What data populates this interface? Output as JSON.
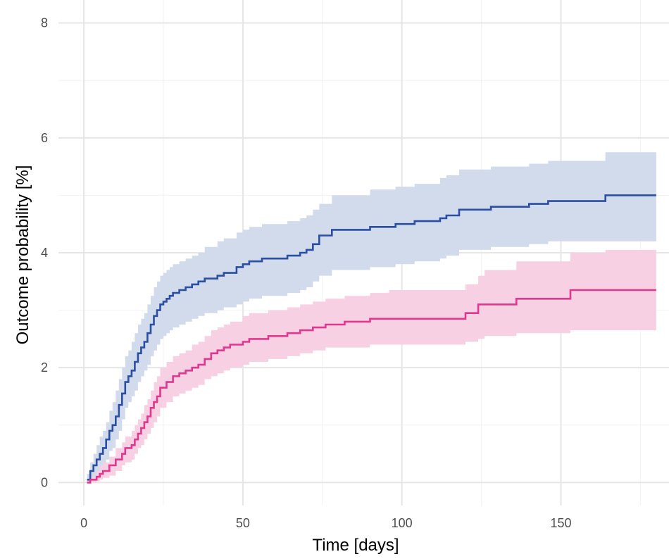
{
  "chart_data": {
    "type": "line",
    "title": "",
    "xlabel": "Time [days]",
    "ylabel": "Outcome probability [%]",
    "xlim": [
      -8,
      184
    ],
    "ylim": [
      -0.4,
      8.4
    ],
    "x_ticks": [
      0,
      50,
      100,
      150
    ],
    "x_tick_labels": [
      "0",
      "50",
      "100",
      "150"
    ],
    "y_ticks": [
      0,
      2,
      4,
      6,
      8
    ],
    "y_tick_labels": [
      "0",
      "2",
      "4",
      "6",
      "8"
    ],
    "grid": true,
    "step": true,
    "legend": "none",
    "series": [
      {
        "color": "#2a4ea3",
        "band_color": "#d2dbec",
        "x": [
          1,
          2,
          3,
          4,
          5,
          6,
          7,
          8,
          9,
          10,
          11,
          12,
          13,
          14,
          15,
          16,
          17,
          18,
          19,
          20,
          21,
          22,
          23,
          24,
          25,
          26,
          27,
          28,
          30,
          32,
          34,
          36,
          38,
          42,
          44,
          48,
          50,
          52,
          56,
          64,
          68,
          70,
          72,
          74,
          78,
          90,
          98,
          104,
          112,
          114,
          118,
          128,
          140,
          146,
          164,
          180
        ],
        "y": [
          0.05,
          0.2,
          0.3,
          0.4,
          0.5,
          0.6,
          0.75,
          0.9,
          1.0,
          1.15,
          1.35,
          1.55,
          1.75,
          1.85,
          1.95,
          2.1,
          2.25,
          2.35,
          2.45,
          2.6,
          2.75,
          2.9,
          3.0,
          3.1,
          3.15,
          3.2,
          3.25,
          3.3,
          3.35,
          3.4,
          3.45,
          3.5,
          3.55,
          3.6,
          3.65,
          3.75,
          3.8,
          3.85,
          3.9,
          3.95,
          4.0,
          4.05,
          4.15,
          4.3,
          4.4,
          4.45,
          4.5,
          4.55,
          4.6,
          4.65,
          4.75,
          4.8,
          4.85,
          4.9,
          5.0,
          5.0
        ],
        "lower": [
          0.0,
          0.05,
          0.1,
          0.15,
          0.2,
          0.3,
          0.4,
          0.55,
          0.6,
          0.75,
          0.9,
          1.1,
          1.3,
          1.4,
          1.5,
          1.6,
          1.75,
          1.85,
          1.95,
          2.05,
          2.2,
          2.3,
          2.4,
          2.5,
          2.55,
          2.6,
          2.65,
          2.7,
          2.75,
          2.8,
          2.85,
          2.9,
          2.95,
          3.0,
          3.05,
          3.1,
          3.15,
          3.2,
          3.25,
          3.3,
          3.35,
          3.4,
          3.5,
          3.6,
          3.7,
          3.75,
          3.8,
          3.85,
          3.9,
          3.95,
          4.05,
          4.1,
          4.15,
          4.2,
          4.2,
          4.2
        ],
        "upper": [
          0.15,
          0.35,
          0.5,
          0.65,
          0.8,
          0.9,
          1.05,
          1.25,
          1.4,
          1.6,
          1.8,
          2.0,
          2.2,
          2.3,
          2.45,
          2.6,
          2.75,
          2.85,
          2.95,
          3.1,
          3.25,
          3.4,
          3.5,
          3.6,
          3.65,
          3.7,
          3.75,
          3.8,
          3.85,
          3.9,
          3.95,
          4.0,
          4.1,
          4.2,
          4.25,
          4.35,
          4.4,
          4.45,
          4.5,
          4.55,
          4.6,
          4.65,
          4.75,
          4.85,
          5.0,
          5.1,
          5.15,
          5.2,
          5.3,
          5.35,
          5.45,
          5.5,
          5.55,
          5.6,
          5.75,
          5.75
        ]
      },
      {
        "color": "#e0388f",
        "band_color": "#f7d1e3",
        "x": [
          1,
          2,
          4,
          5,
          6,
          8,
          10,
          12,
          13,
          15,
          16,
          17,
          18,
          19,
          20,
          21,
          22,
          23,
          24,
          26,
          28,
          30,
          32,
          34,
          36,
          38,
          40,
          42,
          44,
          46,
          50,
          52,
          58,
          64,
          68,
          72,
          76,
          82,
          90,
          94,
          96,
          100,
          112,
          120,
          124,
          126,
          136,
          153,
          164,
          180
        ],
        "y": [
          0.0,
          0.05,
          0.1,
          0.15,
          0.2,
          0.3,
          0.4,
          0.5,
          0.6,
          0.65,
          0.75,
          0.85,
          0.95,
          1.05,
          1.15,
          1.3,
          1.4,
          1.5,
          1.65,
          1.75,
          1.85,
          1.9,
          1.95,
          2.0,
          2.05,
          2.15,
          2.25,
          2.3,
          2.35,
          2.4,
          2.45,
          2.5,
          2.55,
          2.6,
          2.65,
          2.7,
          2.75,
          2.8,
          2.85,
          2.85,
          2.85,
          2.85,
          2.85,
          2.95,
          3.1,
          3.1,
          3.2,
          3.35,
          3.35,
          3.35
        ],
        "lower": [
          0.0,
          0.0,
          0.02,
          0.05,
          0.08,
          0.12,
          0.2,
          0.3,
          0.35,
          0.4,
          0.5,
          0.6,
          0.65,
          0.75,
          0.85,
          0.95,
          1.05,
          1.15,
          1.3,
          1.4,
          1.5,
          1.55,
          1.6,
          1.65,
          1.7,
          1.8,
          1.85,
          1.9,
          1.95,
          2.0,
          2.05,
          2.1,
          2.15,
          2.2,
          2.25,
          2.3,
          2.35,
          2.35,
          2.4,
          2.4,
          2.4,
          2.4,
          2.4,
          2.45,
          2.5,
          2.55,
          2.6,
          2.65,
          2.65,
          2.65
        ],
        "upper": [
          0.05,
          0.1,
          0.2,
          0.3,
          0.35,
          0.45,
          0.6,
          0.7,
          0.8,
          0.9,
          1.0,
          1.1,
          1.2,
          1.35,
          1.45,
          1.6,
          1.75,
          1.85,
          2.0,
          2.1,
          2.2,
          2.25,
          2.3,
          2.4,
          2.45,
          2.55,
          2.65,
          2.7,
          2.75,
          2.8,
          2.9,
          2.95,
          3.0,
          3.05,
          3.1,
          3.15,
          3.2,
          3.25,
          3.3,
          3.3,
          3.35,
          3.35,
          3.35,
          3.45,
          3.6,
          3.7,
          3.85,
          4.0,
          4.05,
          4.05
        ]
      }
    ]
  }
}
